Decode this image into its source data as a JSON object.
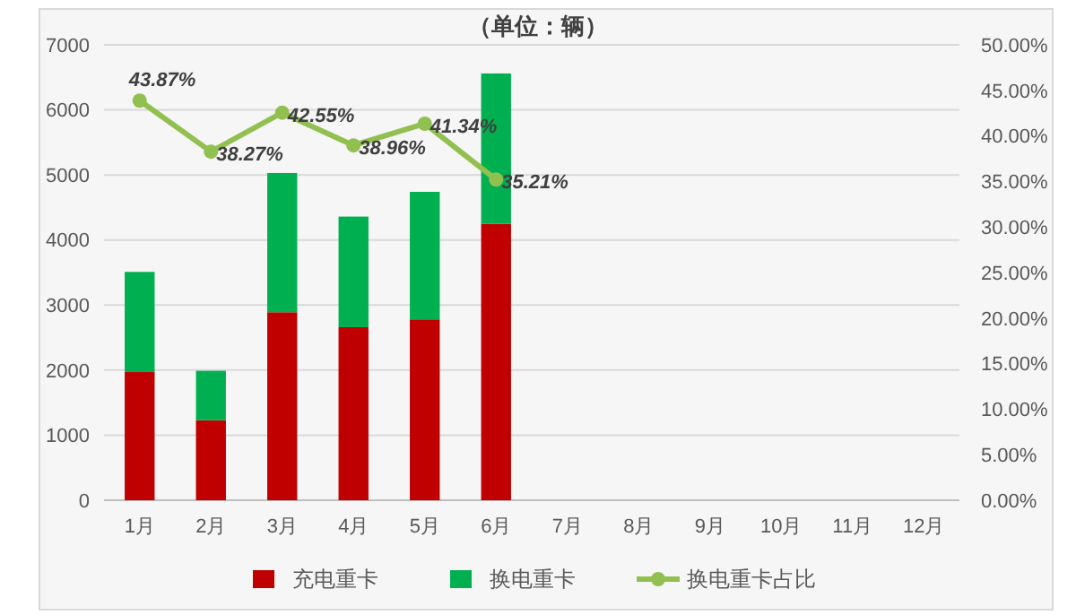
{
  "chart_data": {
    "type": "bar",
    "title": "（单位：辆）",
    "stacked": true,
    "categories": [
      "1月",
      "2月",
      "3月",
      "4月",
      "5月",
      "6月",
      "7月",
      "8月",
      "9月",
      "10月",
      "11月",
      "12月"
    ],
    "series": [
      {
        "name": "充电重卡",
        "color": "#c00000",
        "values": [
          1970,
          1230,
          2890,
          2660,
          2780,
          4250,
          null,
          null,
          null,
          null,
          null,
          null
        ]
      },
      {
        "name": "换电重卡",
        "color": "#00b050",
        "values": [
          1540,
          760,
          2140,
          1700,
          1960,
          2310,
          null,
          null,
          null,
          null,
          null,
          null
        ]
      },
      {
        "name": "换电重卡占比",
        "type": "line",
        "axis": "y2",
        "color": "#92c050",
        "marker": "circle",
        "values": [
          43.87,
          38.27,
          42.55,
          38.96,
          41.34,
          35.21,
          null,
          null,
          null,
          null,
          null,
          null
        ],
        "value_labels": [
          "43.87%",
          "38.27%",
          "42.55%",
          "38.96%",
          "41.34%",
          "35.21%",
          null,
          null,
          null,
          null,
          null,
          null
        ]
      }
    ],
    "ylim": [
      0,
      7000
    ],
    "yticks": [
      0,
      1000,
      2000,
      3000,
      4000,
      5000,
      6000,
      7000
    ],
    "y2lim": [
      0,
      50
    ],
    "y2ticks": [
      {
        "value": 0,
        "label": "0.00%"
      },
      {
        "value": 5,
        "label": "5.00%"
      },
      {
        "value": 10,
        "label": "10.00%"
      },
      {
        "value": 15,
        "label": "15.00%"
      },
      {
        "value": 20,
        "label": "20.00%"
      },
      {
        "value": 25,
        "label": "25.00%"
      },
      {
        "value": 30,
        "label": "30.00%"
      },
      {
        "value": 35,
        "label": "35.00%"
      },
      {
        "value": 40,
        "label": "40.00%"
      },
      {
        "value": 45,
        "label": "45.00%"
      },
      {
        "value": 50,
        "label": "50.00%"
      }
    ],
    "grid": "y",
    "legend": "bottom"
  }
}
